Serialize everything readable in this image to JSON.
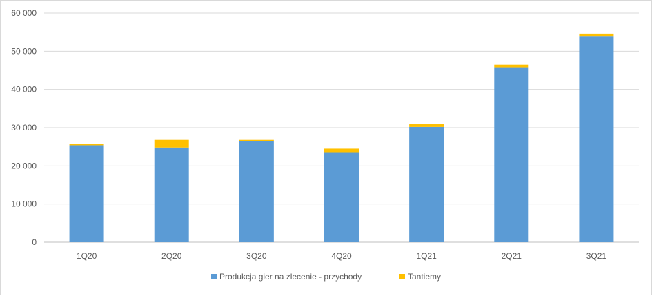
{
  "chart_data": {
    "type": "bar",
    "stacked": true,
    "categories": [
      "1Q20",
      "2Q20",
      "3Q20",
      "4Q20",
      "1Q21",
      "2Q21",
      "3Q21"
    ],
    "series": [
      {
        "name": "Produkcja gier na zlecenie - przychody",
        "color": "#5b9bd5",
        "values": [
          25400,
          24800,
          26400,
          23400,
          30200,
          45800,
          54000
        ]
      },
      {
        "name": "Tantiemy",
        "color": "#ffc000",
        "values": [
          400,
          2000,
          400,
          1100,
          700,
          700,
          600
        ]
      }
    ],
    "yticks": [
      "0",
      "10 000",
      "20 000",
      "30 000",
      "40 000",
      "50 000",
      "60 000"
    ],
    "ylim": [
      0,
      60000
    ],
    "grid": true,
    "legend": "bottom",
    "title": "",
    "xlabel": "",
    "ylabel": ""
  }
}
